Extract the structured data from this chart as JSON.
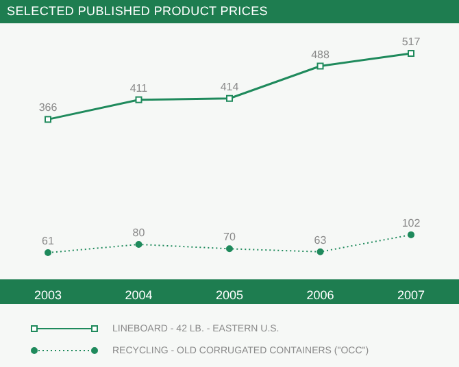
{
  "chart_data": {
    "type": "line",
    "title": "SELECTED PUBLISHED PRODUCT PRICES",
    "categories": [
      "2003",
      "2004",
      "2005",
      "2006",
      "2007"
    ],
    "series": [
      {
        "name": "LINEBOARD - 42 LB. - EASTERN U.S.",
        "color": "#1f8a5c",
        "values": [
          366,
          411,
          414,
          488,
          517
        ],
        "marker": "square",
        "line_style": "solid"
      },
      {
        "name": "RECYCLING - OLD CORRUGATED CONTAINERS (\"OCC\")",
        "color": "#1f8a5c",
        "values": [
          61,
          80,
          70,
          63,
          102
        ],
        "marker": "circle",
        "line_style": "dotted"
      }
    ],
    "data_labels": true,
    "legend": "bottom"
  }
}
